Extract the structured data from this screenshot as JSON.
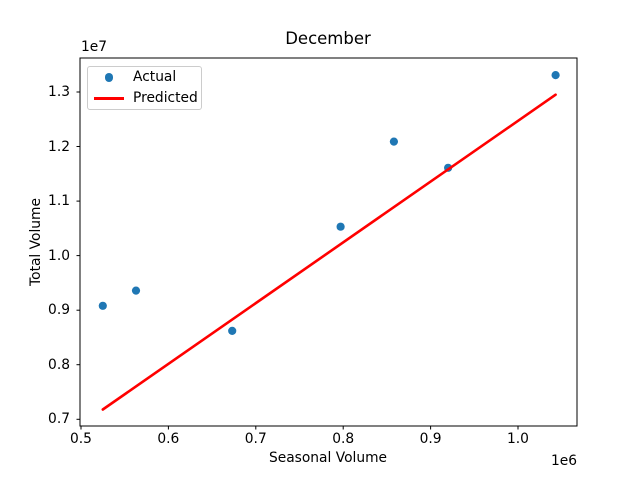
{
  "chart_data": {
    "type": "scatter",
    "title": "December",
    "xlabel": "Seasonal Volume",
    "ylabel": "Total Volume",
    "x_offset_text": "1e6",
    "y_offset_text": "1e7",
    "xlim": [
      498900,
      1067500
    ],
    "ylim": [
      6877000,
      13623000
    ],
    "grid": false,
    "x_ticks": {
      "values": [
        500000,
        600000,
        700000,
        800000,
        900000,
        1000000
      ],
      "labels": [
        "0.5",
        "0.6",
        "0.7",
        "0.8",
        "0.9",
        "1.0"
      ]
    },
    "y_ticks": {
      "values": [
        7000000,
        8000000,
        9000000,
        10000000,
        11000000,
        12000000,
        13000000
      ],
      "labels": [
        "0.7",
        "0.8",
        "0.9",
        "1.0",
        "1.1",
        "1.2",
        "1.3"
      ]
    },
    "legend": {
      "position": "upper-left",
      "entries": [
        {
          "label": "Actual",
          "marker": "dot",
          "color": "#1f77b4"
        },
        {
          "label": "Predicted",
          "marker": "line",
          "color": "#ff0000"
        }
      ]
    },
    "series": [
      {
        "name": "Actual",
        "type": "scatter",
        "color": "#1f77b4",
        "points": [
          [
            525000,
            9080000
          ],
          [
            563000,
            9360000
          ],
          [
            673000,
            8620000
          ],
          [
            797000,
            10530000
          ],
          [
            858000,
            12090000
          ],
          [
            920000,
            11610000
          ],
          [
            1043000,
            13310000
          ]
        ]
      },
      {
        "name": "Predicted",
        "type": "line",
        "color": "#ff0000",
        "points": [
          [
            525000,
            7180000
          ],
          [
            1043000,
            12950000
          ]
        ]
      }
    ]
  },
  "colors": {
    "background": "#ffffff",
    "axis": "#000000",
    "text": "#000000",
    "legend_border": "#cccccc"
  }
}
